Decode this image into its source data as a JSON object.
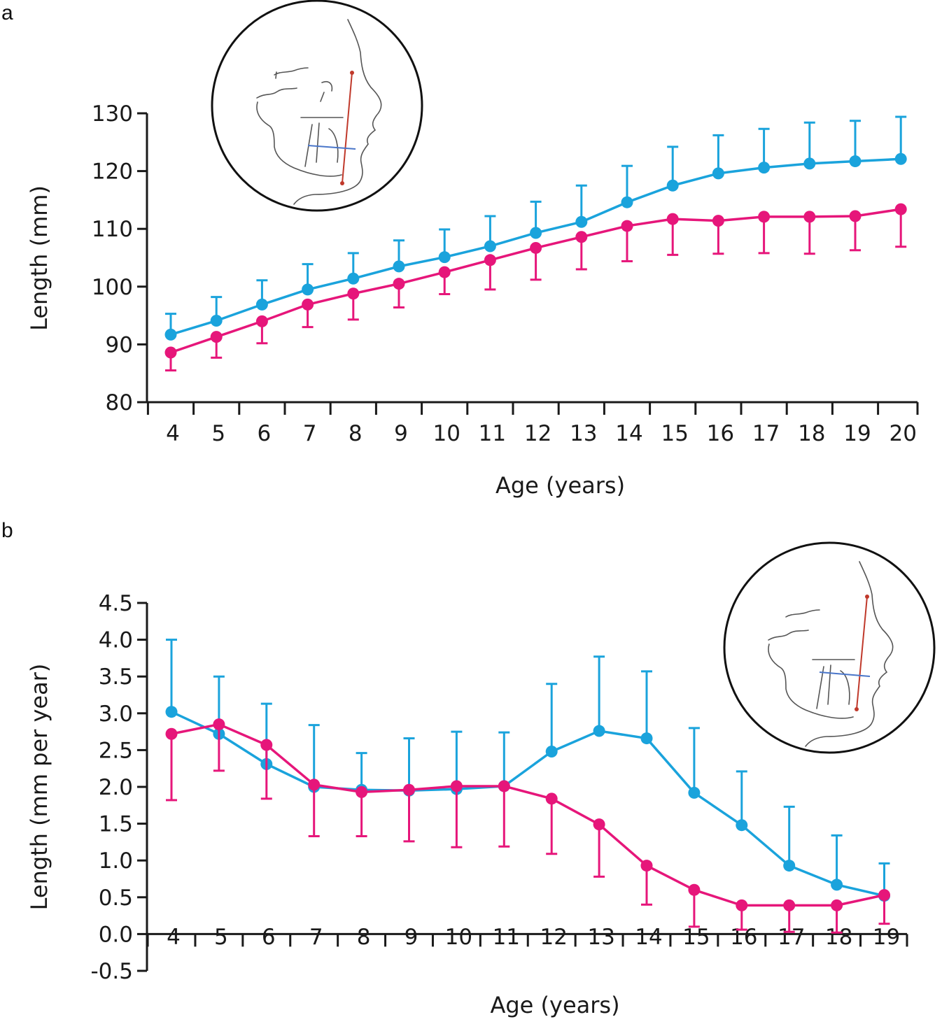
{
  "panels": [
    {
      "label": "a"
    },
    {
      "label": "b"
    }
  ],
  "colors": {
    "series_1": "#1aa3dc",
    "series_2": "#e6167a",
    "axis": "#1a1a1a"
  },
  "chart_data": [
    {
      "panel": "a",
      "type": "line",
      "xlabel": "Age (years)",
      "ylabel": "Length (mm)",
      "ylim": [
        80,
        130
      ],
      "yticks": [
        "80",
        "90",
        "100",
        "110",
        "120",
        "130"
      ],
      "categories": [
        "4",
        "5",
        "6",
        "7",
        "8",
        "9",
        "10",
        "11",
        "12",
        "13",
        "14",
        "15",
        "16",
        "17",
        "18",
        "19",
        "20"
      ],
      "inset": "cephalometric-profile-illustration",
      "series": [
        {
          "color": "#1aa3dc",
          "error_direction": "up",
          "values": [
            91.7,
            94.1,
            96.9,
            99.5,
            101.4,
            103.5,
            105.1,
            107.0,
            109.3,
            111.2,
            114.6,
            117.5,
            119.6,
            120.6,
            121.3,
            121.7,
            122.1
          ],
          "errors": [
            3.6,
            4.1,
            4.2,
            4.4,
            4.4,
            4.5,
            4.8,
            5.2,
            5.4,
            6.3,
            6.3,
            6.7,
            6.6,
            6.7,
            7.1,
            7.0,
            7.3
          ]
        },
        {
          "color": "#e6167a",
          "error_direction": "down",
          "values": [
            88.6,
            91.3,
            94.0,
            96.9,
            98.8,
            100.5,
            102.5,
            104.6,
            106.7,
            108.6,
            110.5,
            111.7,
            111.4,
            112.1,
            112.1,
            112.2,
            113.4
          ],
          "errors": [
            3.1,
            3.6,
            3.8,
            3.9,
            4.5,
            4.1,
            3.8,
            5.1,
            5.5,
            5.6,
            6.1,
            6.2,
            5.7,
            6.3,
            6.4,
            5.9,
            6.5
          ]
        }
      ]
    },
    {
      "panel": "b",
      "type": "line",
      "xlabel": "Age (years)",
      "ylabel": "Length (mm per year)",
      "ylim": [
        -0.5,
        4.5
      ],
      "yticks": [
        "-0.5",
        "0.0",
        "0.5",
        "1.0",
        "1.5",
        "2.0",
        "2.5",
        "3.0",
        "3.5",
        "4.0",
        "4.5"
      ],
      "categories": [
        "4",
        "5",
        "6",
        "7",
        "8",
        "9",
        "10",
        "11",
        "12",
        "13",
        "14",
        "15",
        "16",
        "17",
        "18",
        "19"
      ],
      "inset": "cephalometric-profile-illustration",
      "series": [
        {
          "color": "#1aa3dc",
          "error_direction": "up",
          "values": [
            3.02,
            2.72,
            2.31,
            2.0,
            1.96,
            1.95,
            1.97,
            2.01,
            2.48,
            2.76,
            2.66,
            1.92,
            1.48,
            0.93,
            0.67,
            0.52
          ],
          "errors": [
            0.98,
            0.78,
            0.82,
            0.84,
            0.5,
            0.71,
            0.78,
            0.73,
            0.92,
            1.01,
            0.91,
            0.88,
            0.73,
            0.8,
            0.67,
            0.44
          ]
        },
        {
          "color": "#e6167a",
          "error_direction": "down",
          "values": [
            2.72,
            2.85,
            2.57,
            2.03,
            1.93,
            1.96,
            2.01,
            2.01,
            1.84,
            1.49,
            0.93,
            0.6,
            0.39,
            0.39,
            0.39,
            0.53
          ],
          "errors": [
            0.9,
            0.63,
            0.73,
            0.7,
            0.6,
            0.7,
            0.83,
            0.82,
            0.75,
            0.71,
            0.53,
            0.5,
            0.33,
            0.36,
            0.37,
            0.39
          ]
        }
      ]
    }
  ]
}
